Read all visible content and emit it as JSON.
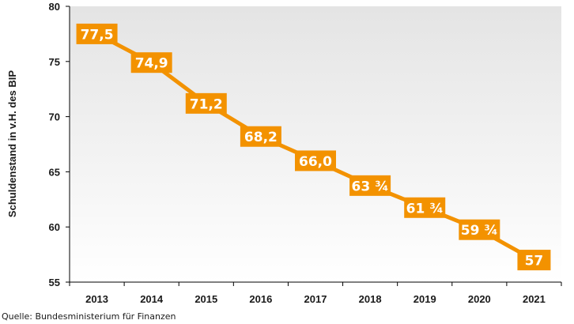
{
  "chart_data": {
    "type": "line",
    "title": "",
    "xlabel": "",
    "ylabel": "Schuldenstand in v.H. des BIP",
    "categories": [
      "2013",
      "2014",
      "2015",
      "2016",
      "2017",
      "2018",
      "2019",
      "2020",
      "2021"
    ],
    "series": [
      {
        "values": [
          77.5,
          74.9,
          71.2,
          68.2,
          66.0,
          63.75,
          61.75,
          59.75,
          57
        ],
        "labels": [
          "77,5",
          "74,9",
          "71,2",
          "68,2",
          "66,0",
          "63 ¾",
          "61 ¾",
          "59 ¾",
          "57"
        ]
      }
    ],
    "yticks": [
      "55",
      "60",
      "65",
      "70",
      "75",
      "80"
    ],
    "ylim": [
      55,
      80
    ],
    "grid": false,
    "legend": "none",
    "colors": {
      "line": "#f39200",
      "label_box": "#f39200",
      "label_text": "#ffffff",
      "plot_background_top": "#e4e4e4",
      "plot_background_bottom": "#ffffff"
    }
  },
  "source": "Quelle: Bundesministerium für Finanzen"
}
